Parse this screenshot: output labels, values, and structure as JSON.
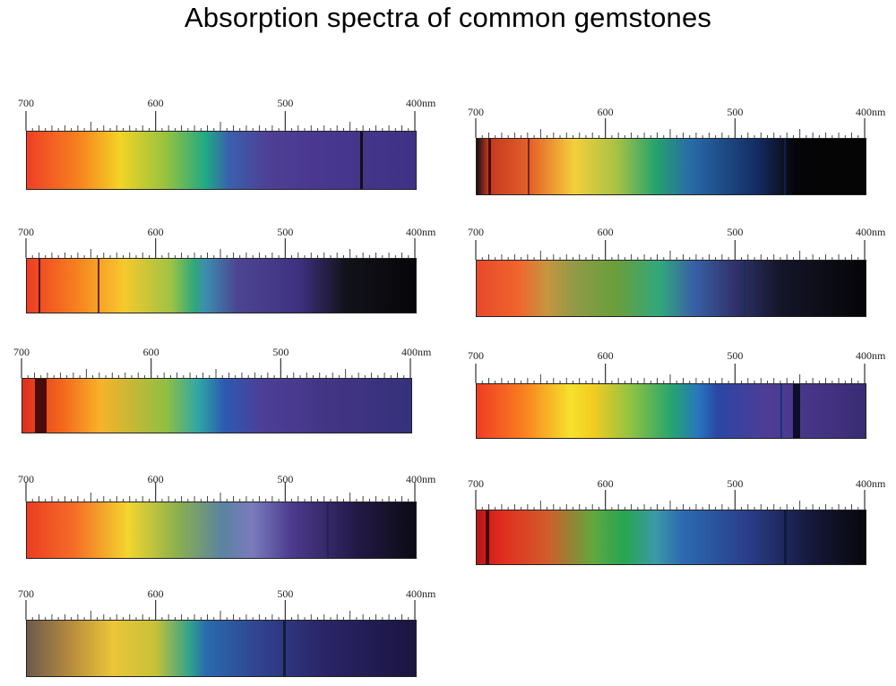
{
  "title": "Absorption spectra of common gemstones",
  "scale_labels": [
    "700",
    "600",
    "500",
    "400nm"
  ],
  "colors": {
    "red": "#ee3b24",
    "orange": "#f7821d",
    "yellow": "#f4d11f",
    "green": "#3db152",
    "blue": "#2c6ab3",
    "violet": "#4d3a8c",
    "black": "#0b0b10"
  },
  "spectra": [
    {
      "gradient": [
        "#ef3f26 0%",
        "#f7861f 14%",
        "#f3d426 24%",
        "#93c23f 36%",
        "#1fa985 46%",
        "#3b5fae 52%",
        "#4e4095 62%",
        "#4a3890 74%",
        "#3e3285 100%"
      ],
      "lines": [
        {
          "nm": 442,
          "w": 3,
          "color": "#111"
        }
      ]
    },
    {
      "gradient": [
        "#1a0f0f 0%",
        "#c3381f 3%",
        "#e56229 14%",
        "#f4cf3b 25%",
        "#a8c244 36%",
        "#24a36e 46%",
        "#276ba9 55%",
        "#142c63 72%",
        "#050507 82%",
        "#050506 100%"
      ],
      "lines": [
        {
          "nm": 690,
          "w": 3,
          "color": "#3a0e0e"
        },
        {
          "nm": 660,
          "w": 2,
          "color": "#6a2a1a"
        },
        {
          "nm": 462,
          "w": 2,
          "color": "#14204a"
        }
      ]
    },
    {
      "gradient": [
        "#ee3c23 0%",
        "#f6821f 13%",
        "#f6c92d 25%",
        "#9fc343 37%",
        "#2ea87a 43%",
        "#3c8db0 46%",
        "#4c4592 54%",
        "#3e3180 70%",
        "#12121a 82%",
        "#060609 100%"
      ],
      "lines": [
        {
          "nm": 690,
          "w": 2,
          "color": "#4a1010"
        },
        {
          "nm": 645,
          "w": 2,
          "color": "#6a2a14"
        },
        {
          "nm": 442,
          "w": 2,
          "color": "#101020"
        }
      ]
    },
    {
      "gradient": [
        "#e8492b 0%",
        "#f0652e 11%",
        "#c79540 18%",
        "#8b9a46 26%",
        "#6a9e3b 36%",
        "#31a87d 47%",
        "#385fa7 56%",
        "#30346d 66%",
        "#15152a 78%",
        "#050507 100%"
      ],
      "lines": [
        {
          "nm": 493,
          "w": 2,
          "color": "#1c2c5c"
        },
        {
          "nm": 487,
          "w": 2,
          "color": "#1c2c5c"
        }
      ]
    },
    {
      "gradient": [
        "#dd2f1f 0%",
        "#f3651c 10%",
        "#f8b22a 20%",
        "#8fbf42 37%",
        "#2fa8a5 45%",
        "#2c5ab1 52%",
        "#4d3e97 62%",
        "#433584 78%",
        "#35317b 100%"
      ],
      "lines": [
        {
          "nm": 686,
          "w": 13,
          "color": "#4a0c0a"
        }
      ]
    },
    {
      "gradient": [
        "#ef3c23 0%",
        "#f97f20 12%",
        "#f6e12c 24%",
        "#f3cc22 30%",
        "#8cc243 40%",
        "#26a56e 50%",
        "#2776bf 57%",
        "#2a46a4 62%",
        "#4f3d96 75%",
        "#3a2b74 100%"
      ],
      "lines": [
        {
          "nm": 465,
          "w": 2,
          "color": "#15357a"
        },
        {
          "nm": 453,
          "w": 8,
          "color": "#0d0e2c"
        }
      ]
    },
    {
      "gradient": [
        "#ec3d22 0%",
        "#f46c27 12%",
        "#f3d62f 26%",
        "#8fb24a 38%",
        "#5b84a0 50%",
        "#7a7bbd 58%",
        "#4c3b8f 68%",
        "#231946 85%",
        "#0b0a14 100%"
      ],
      "lines": [
        {
          "nm": 468,
          "w": 2,
          "color": "#2b1e5c"
        },
        {
          "nm": 460,
          "w": 1,
          "color": "#2b1e5c"
        }
      ]
    },
    {
      "gradient": [
        "#b7161a 0%",
        "#e12b1e 6%",
        "#d35b2a 18%",
        "#5fa83e 30%",
        "#27a552 38%",
        "#3b99a8 46%",
        "#2b6ab0 53%",
        "#2a3d8a 70%",
        "#15183a 86%",
        "#07070b 100%"
      ],
      "lines": [
        {
          "nm": 692,
          "w": 4,
          "color": "#4a0606"
        },
        {
          "nm": 462,
          "w": 3,
          "color": "#0e1a40"
        }
      ]
    },
    {
      "gradient": [
        "#6e5a4d 0%",
        "#b58a3d 11%",
        "#ecc53a 22%",
        "#c7c138 33%",
        "#2fa28c 42%",
        "#2a6bad 46%",
        "#30428f 60%",
        "#2a2567 76%",
        "#1a1540 100%"
      ],
      "lines": [
        {
          "nm": 501,
          "w": 3,
          "color": "#0f1d3f"
        }
      ]
    }
  ]
}
